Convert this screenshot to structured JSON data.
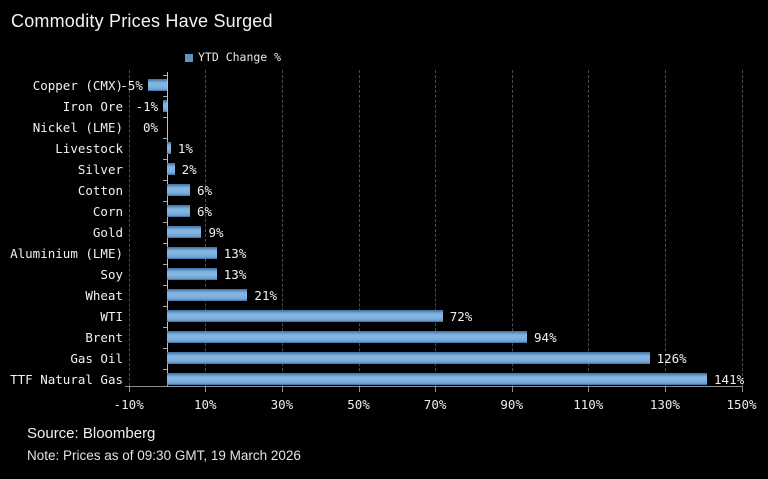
{
  "title": "Commodity Prices Have Surged",
  "legend": {
    "label": "YTD Change %",
    "swatch_color": "#5d92c6"
  },
  "footer": {
    "source": "Source: Bloomberg",
    "note": "Note: Prices as of 09:30 GMT, 19 March 2026"
  },
  "colors": {
    "background": "#000000",
    "bar": "#7fb2df",
    "bar_edge": "#3c6e9e",
    "text": "#f1f1f1",
    "gridline": "#4e4e4e",
    "axis": "#909090",
    "zero_axis": "#bcbcbc"
  },
  "chart_data": {
    "type": "bar",
    "orientation": "horizontal",
    "title": "Commodity Prices Have Surged",
    "series_name": "YTD Change %",
    "categories": [
      "Copper (CMX)",
      "Iron Ore",
      "Nickel (LME)",
      "Livestock",
      "Silver",
      "Cotton",
      "Corn",
      "Gold",
      "Aluminium (LME)",
      "Soy",
      "Wheat",
      "WTI",
      "Brent",
      "Gas Oil",
      "TTF Natural Gas"
    ],
    "values": [
      -5,
      -1,
      0,
      1,
      2,
      6,
      6,
      9,
      13,
      13,
      21,
      72,
      94,
      126,
      141
    ],
    "value_labels": [
      "-5%",
      "-1%",
      "0%",
      "1%",
      "2%",
      "6%",
      "6%",
      "9%",
      "13%",
      "13%",
      "21%",
      "72%",
      "94%",
      "126%",
      "141%"
    ],
    "xlabel": "",
    "ylabel": "",
    "xlim": [
      -10,
      150
    ],
    "x_tick_values": [
      -10,
      10,
      30,
      50,
      70,
      90,
      110,
      130,
      150
    ],
    "x_ticks": [
      "-10%",
      "10%",
      "30%",
      "50%",
      "70%",
      "90%",
      "110%",
      "130%",
      "150%"
    ],
    "grid": "vertical-dashed",
    "legend_position": "top"
  }
}
